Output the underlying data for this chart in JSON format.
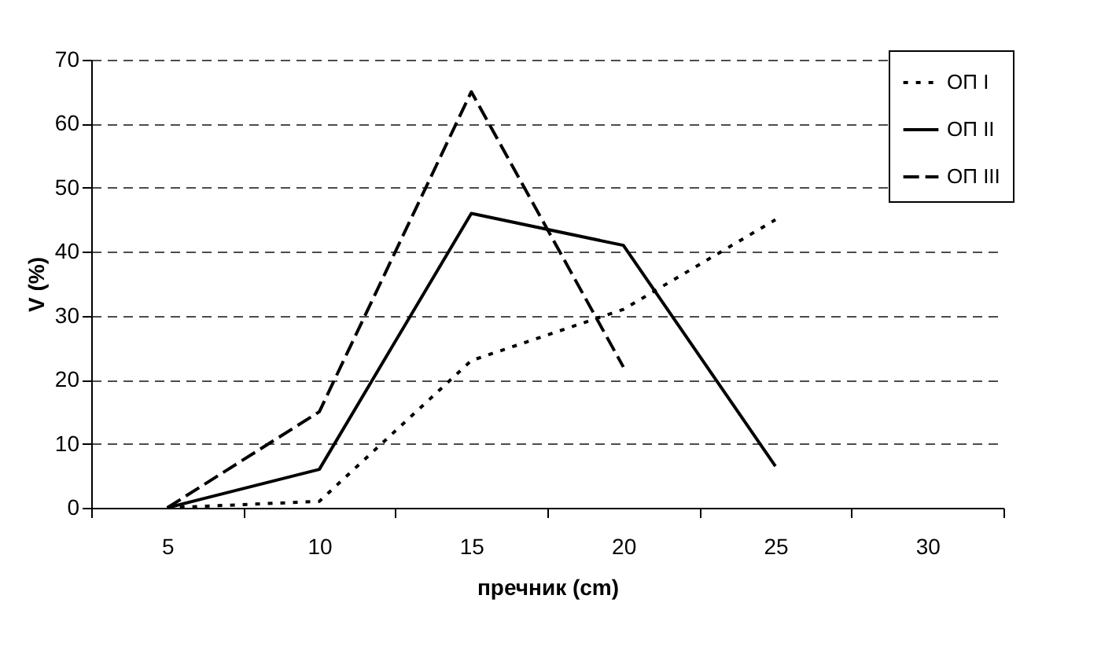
{
  "chart_data": {
    "type": "line",
    "xlabel": "пречник (cm)",
    "ylabel": "V (%)",
    "categories": [
      "5",
      "10",
      "15",
      "20",
      "25",
      "30"
    ],
    "ylim": [
      0,
      70
    ],
    "yticks": [
      0,
      10,
      20,
      30,
      40,
      50,
      60,
      70
    ],
    "grid": "y",
    "legend": "top right",
    "series": [
      {
        "name": "ОП I",
        "color": "#000000",
        "line_style": "dotted",
        "values": [
          0,
          1,
          23,
          31,
          45,
          null
        ]
      },
      {
        "name": "ОП II",
        "color": "#000000",
        "line_style": "solid",
        "values": [
          0,
          6,
          46,
          41,
          6.5,
          null
        ]
      },
      {
        "name": "ОП III",
        "color": "#000000",
        "line_style": "dashed",
        "values": [
          0,
          15,
          65,
          22,
          null,
          null
        ]
      }
    ]
  }
}
